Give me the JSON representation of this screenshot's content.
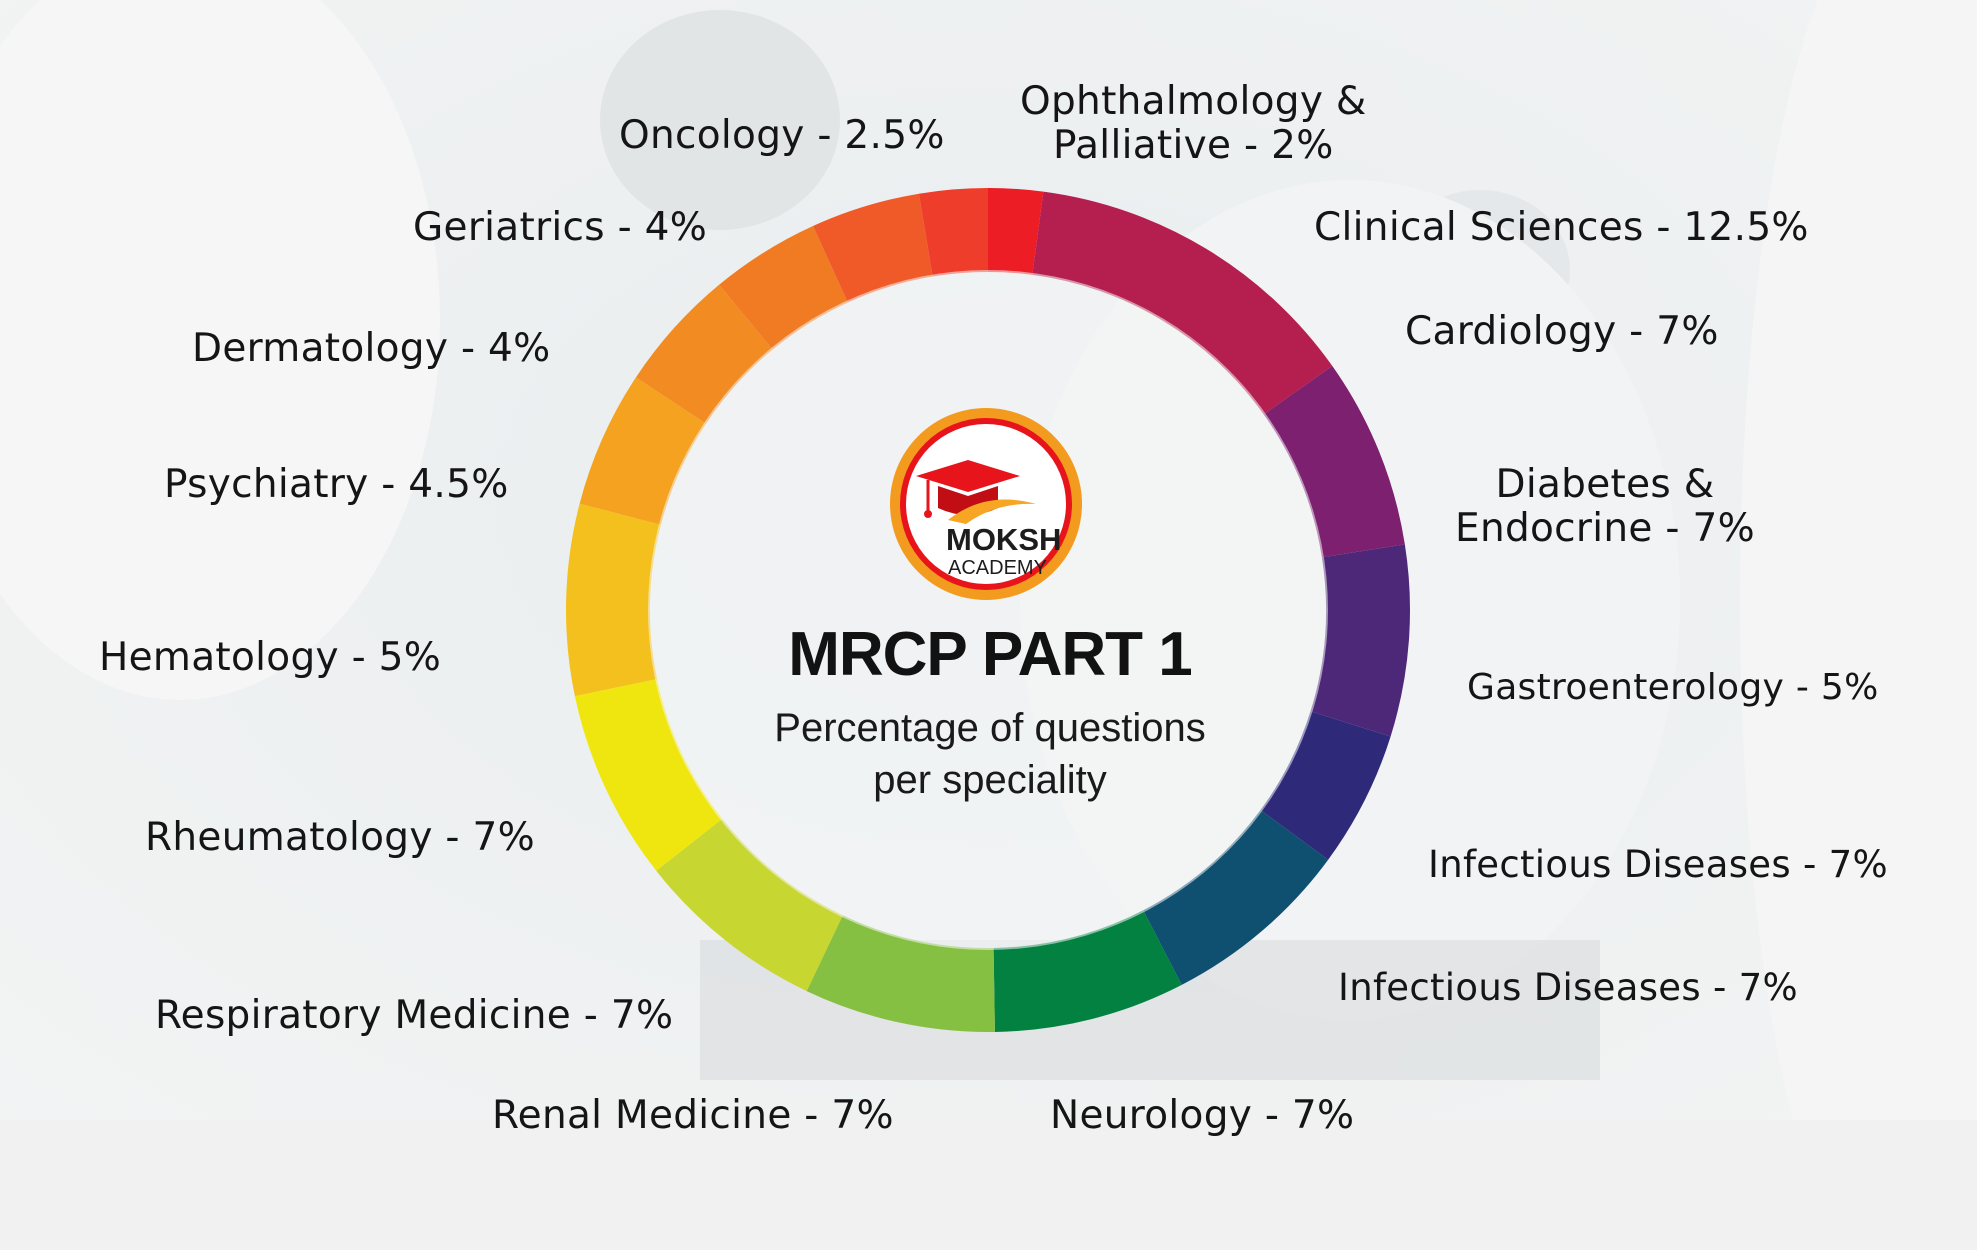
{
  "chart_data": {
    "type": "pie",
    "title": "MRCP PART 1",
    "subtitle_line1": "Percentage of questions",
    "subtitle_line2": "per speciality",
    "slices": [
      {
        "label": "Ophthalmology &",
        "label2": "Palliative - 2%",
        "value": 2,
        "color": "#ec1d25"
      },
      {
        "label": "Clinical Sciences - 12.5%",
        "value": 12.5,
        "color": "#b41f4f"
      },
      {
        "label": "Cardiology - 7%",
        "value": 7,
        "color": "#7d2070"
      },
      {
        "label": "Diabetes &",
        "label2": "Endocrine - 7%",
        "value": 7,
        "color": "#4e2878"
      },
      {
        "label": "Gastroenterology - 5%",
        "value": 5,
        "color": "#2e2a79"
      },
      {
        "label": "Infectious Diseases - 7%",
        "value": 7,
        "color": "#0f4f70"
      },
      {
        "label": "Infectious Diseases - 7%",
        "value": 7,
        "color": "#038140"
      },
      {
        "label": "Neurology - 7%",
        "value": 7,
        "color": "#86c042"
      },
      {
        "label": "Renal Medicine - 7%",
        "value": 7,
        "color": "#c7d631"
      },
      {
        "label": "Respiratory Medicine - 7%",
        "value": 7,
        "color": "#f0e60f"
      },
      {
        "label": "Rheumatology - 7%",
        "value": 7,
        "color": "#f3c01d"
      },
      {
        "label": "Hematology - 5%",
        "value": 5,
        "color": "#f4a21f"
      },
      {
        "label": "Psychiatry - 4.5%",
        "value": 4.5,
        "color": "#f28b22"
      },
      {
        "label": "Dermatology - 4%",
        "value": 4,
        "color": "#f17b23"
      },
      {
        "label": "Geriatrics - 4%",
        "value": 4,
        "color": "#f05a28"
      },
      {
        "label": "Oncology - 2.5%",
        "value": 2.5,
        "color": "#ee3d2b"
      }
    ]
  },
  "logo": {
    "brand": "MOKSH",
    "sub": "ACADEMY",
    "accent": "#e7141b",
    "ring_color": "#f39b1e"
  }
}
